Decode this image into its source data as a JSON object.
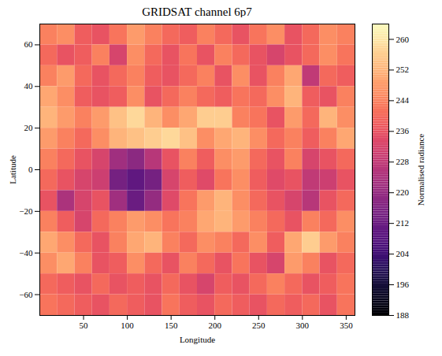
{
  "chart_data": {
    "type": "heatmap",
    "title": "GRIDSAT channel 6p7",
    "x_label": "Longitude",
    "y_label": "Latitude",
    "xlim": [
      0,
      360
    ],
    "ylim": [
      -70,
      70
    ],
    "xticks": [
      50,
      100,
      150,
      200,
      250,
      300,
      350
    ],
    "yticks": [
      -60,
      -40,
      -20,
      0,
      20,
      40,
      60
    ],
    "x": [
      10,
      30,
      50,
      70,
      90,
      110,
      130,
      150,
      170,
      190,
      210,
      230,
      250,
      270,
      290,
      310,
      330,
      350
    ],
    "y": [
      65,
      55,
      45,
      35,
      25,
      15,
      5,
      -5,
      -15,
      -25,
      -35,
      -45,
      -55,
      -65
    ],
    "values": [
      [
        244,
        246,
        238,
        236,
        242,
        248,
        244,
        240,
        238,
        244,
        240,
        236,
        242,
        246,
        236,
        240,
        246,
        244
      ],
      [
        240,
        236,
        238,
        244,
        232,
        246,
        240,
        236,
        242,
        236,
        244,
        240,
        236,
        232,
        236,
        240,
        246,
        242
      ],
      [
        244,
        248,
        240,
        236,
        240,
        244,
        238,
        236,
        240,
        244,
        236,
        246,
        236,
        244,
        250,
        228,
        240,
        238
      ],
      [
        250,
        246,
        238,
        236,
        238,
        246,
        236,
        240,
        244,
        240,
        238,
        242,
        240,
        246,
        252,
        238,
        236,
        244
      ],
      [
        252,
        248,
        244,
        248,
        254,
        258,
        252,
        246,
        250,
        256,
        256,
        244,
        242,
        236,
        248,
        240,
        252,
        246
      ],
      [
        248,
        244,
        240,
        246,
        252,
        254,
        256,
        258,
        254,
        246,
        250,
        252,
        246,
        240,
        244,
        238,
        244,
        250
      ],
      [
        244,
        240,
        236,
        232,
        222,
        218,
        226,
        236,
        244,
        238,
        246,
        248,
        240,
        236,
        244,
        232,
        236,
        240
      ],
      [
        240,
        236,
        232,
        230,
        214,
        210,
        214,
        232,
        238,
        234,
        242,
        246,
        238,
        234,
        236,
        228,
        230,
        236
      ],
      [
        236,
        224,
        232,
        236,
        222,
        212,
        220,
        234,
        242,
        248,
        252,
        246,
        240,
        236,
        232,
        226,
        236,
        240
      ],
      [
        244,
        238,
        232,
        240,
        244,
        248,
        246,
        242,
        244,
        250,
        252,
        248,
        244,
        240,
        236,
        244,
        240,
        246
      ],
      [
        250,
        246,
        240,
        236,
        244,
        250,
        252,
        244,
        240,
        246,
        244,
        240,
        246,
        238,
        250,
        256,
        248,
        244
      ],
      [
        246,
        250,
        244,
        236,
        238,
        246,
        240,
        236,
        244,
        240,
        236,
        242,
        236,
        232,
        248,
        244,
        236,
        240
      ],
      [
        240,
        238,
        236,
        240,
        236,
        238,
        236,
        240,
        236,
        232,
        238,
        236,
        240,
        244,
        240,
        236,
        238,
        242
      ],
      [
        242,
        240,
        238,
        236,
        240,
        238,
        236,
        242,
        238,
        236,
        240,
        238,
        236,
        240,
        238,
        240,
        236,
        242
      ]
    ],
    "colorbar": {
      "label": "Normalised radiance",
      "range": [
        188,
        264
      ],
      "ticks": [
        188,
        196,
        204,
        212,
        220,
        228,
        236,
        244,
        252,
        260
      ]
    },
    "color": "magma"
  }
}
